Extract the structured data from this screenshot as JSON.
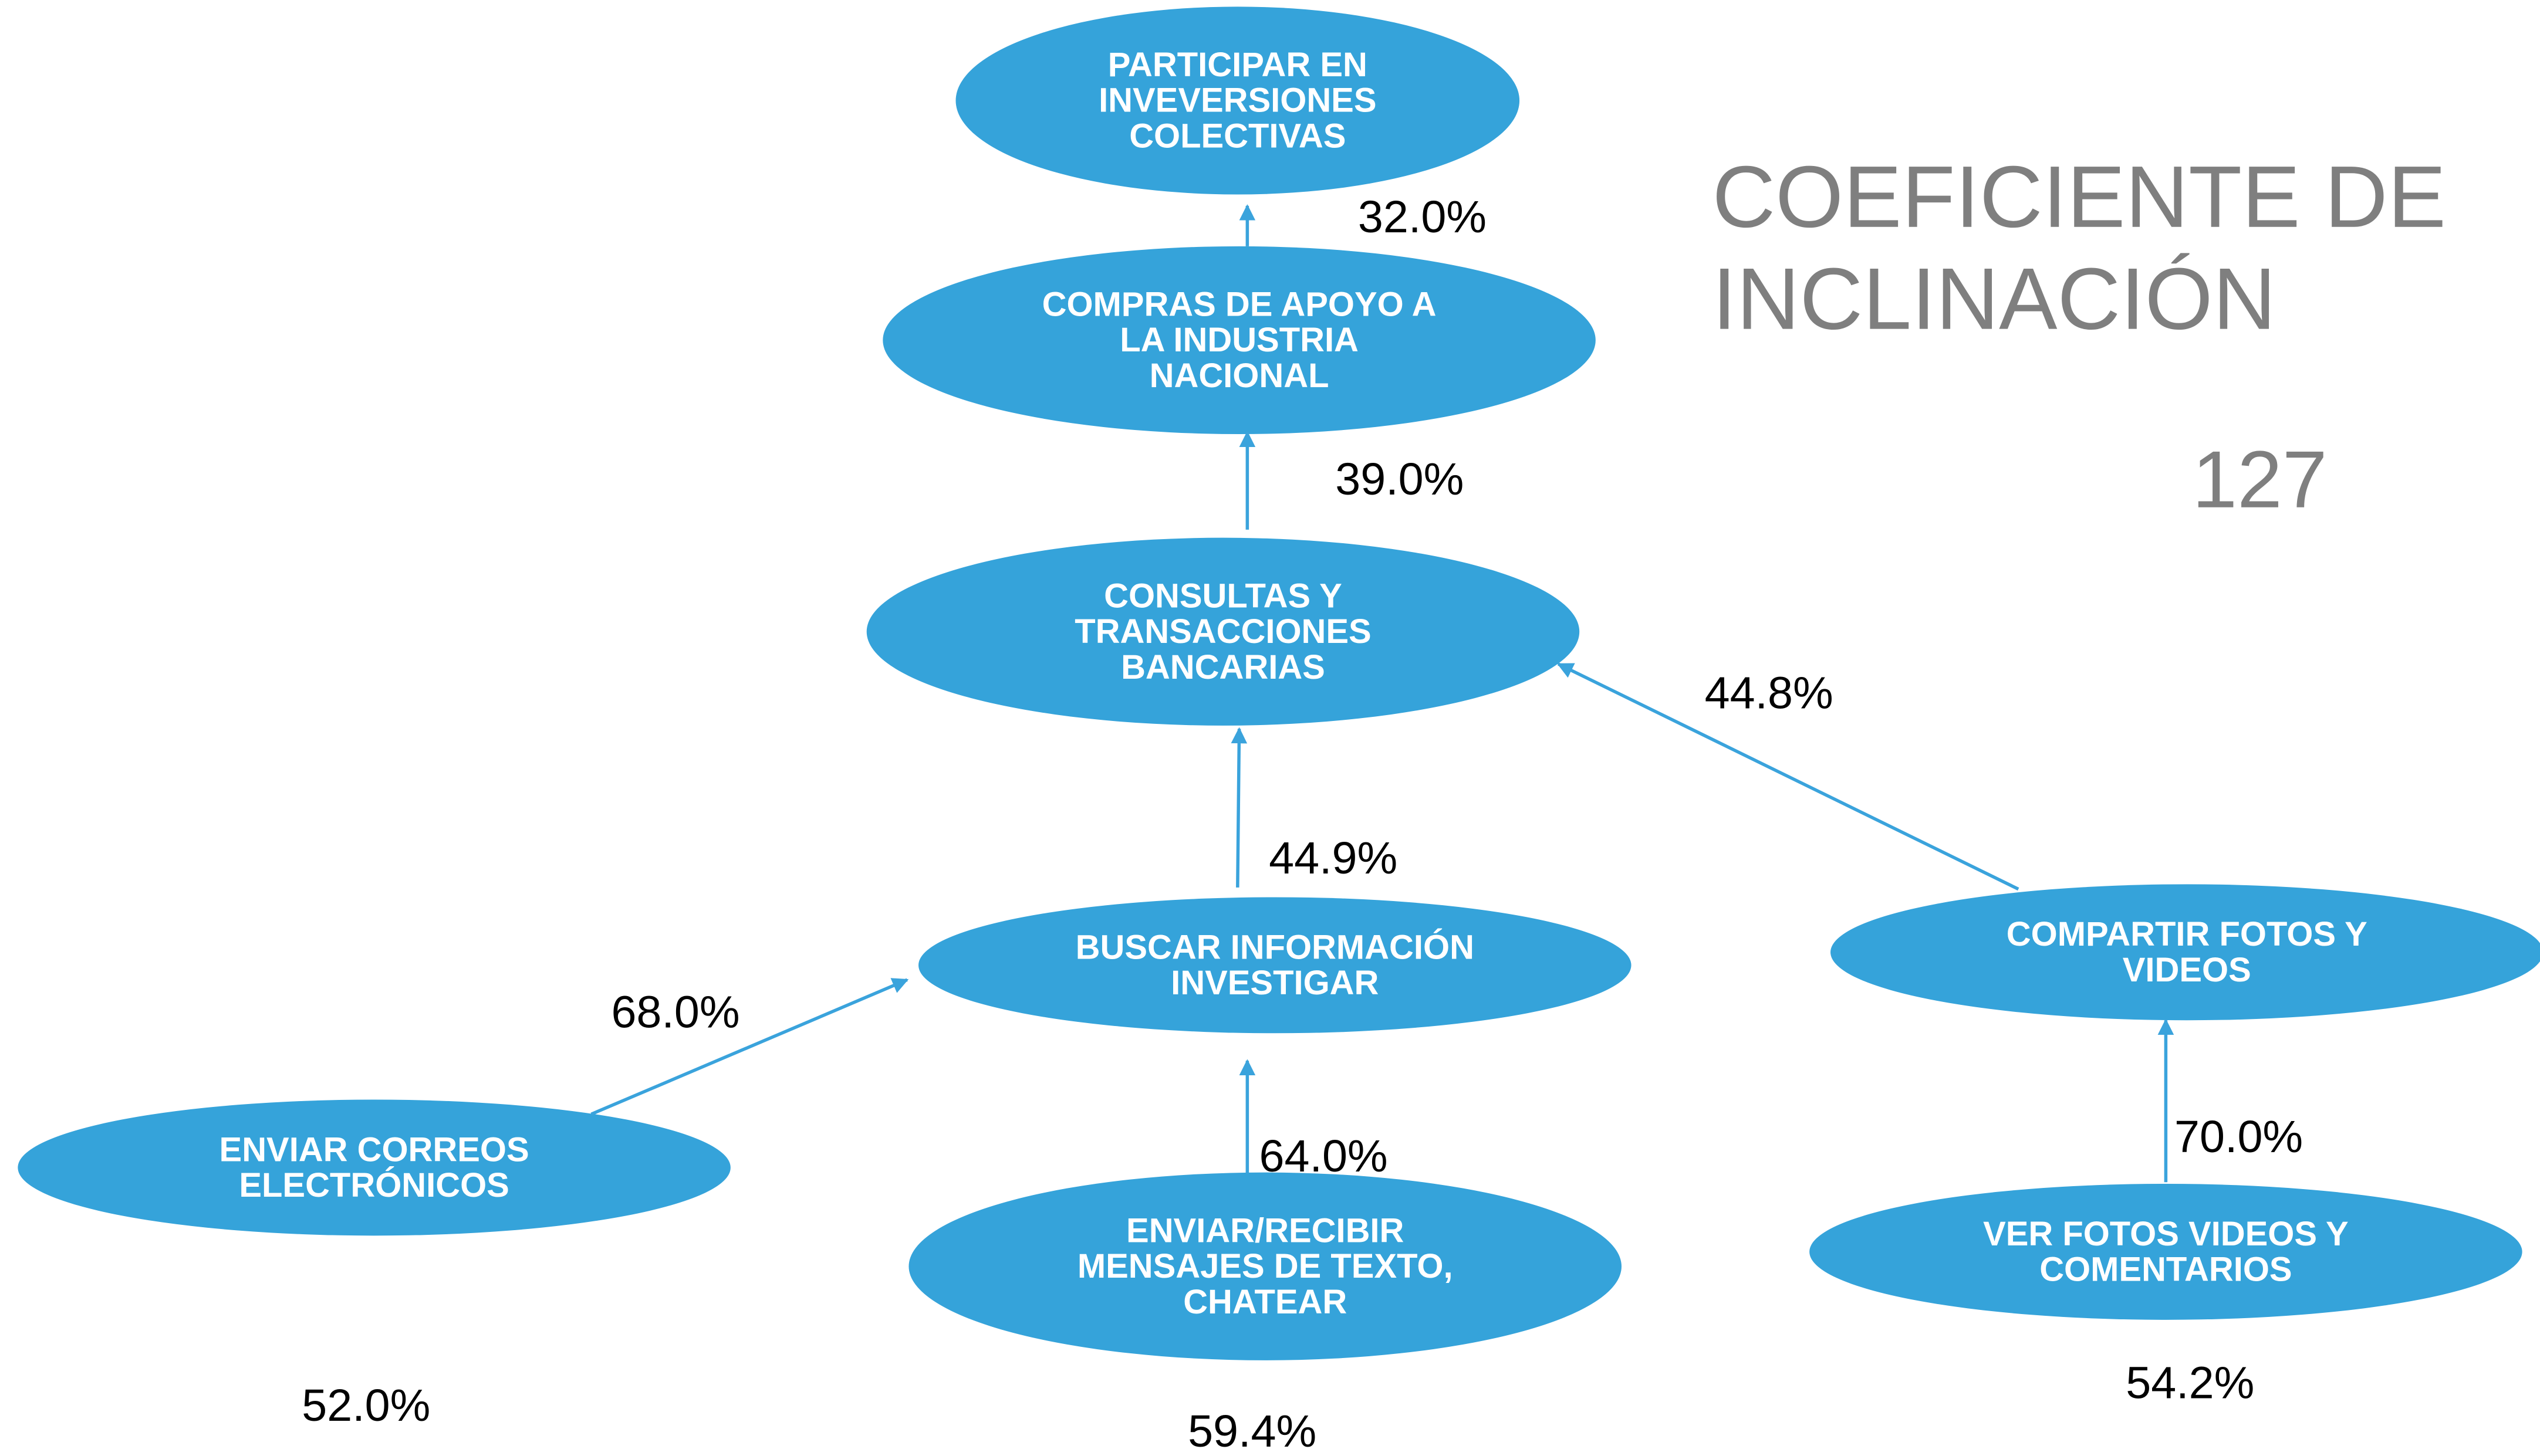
{
  "title": {
    "lines": [
      "COEFICIENTE DE",
      "INCLINACIÓN"
    ]
  },
  "value": "127",
  "nodes": [
    {
      "lines": [
        "PARTICIPAR EN",
        "INVEVERSIONES",
        "COLECTIVAS"
      ]
    },
    {
      "lines": [
        "COMPRAS DE APOYO A",
        "LA INDUSTRIA",
        "NACIONAL"
      ]
    },
    {
      "lines": [
        "CONSULTAS Y",
        "TRANSACCIONES",
        "BANCARIAS"
      ]
    },
    {
      "lines": [
        "BUSCAR INFORMACIÓN",
        "INVESTIGAR"
      ]
    },
    {
      "lines": [
        "COMPARTIR FOTOS Y",
        "VIDEOS"
      ]
    },
    {
      "lines": [
        "ENVIAR CORREOS",
        "ELECTRÓNICOS"
      ]
    },
    {
      "lines": [
        "ENVIAR/RECIBIR",
        "MENSAJES DE TEXTO,",
        "CHATEAR"
      ]
    },
    {
      "lines": [
        "VER FOTOS VIDEOS Y",
        "COMENTARIOS"
      ]
    }
  ],
  "edges": [
    {
      "label": "32.0%"
    },
    {
      "label": "39.0%"
    },
    {
      "label": "44.9%"
    },
    {
      "label": "44.8%"
    },
    {
      "label": "68.0%"
    },
    {
      "label": "64.0%"
    },
    {
      "label": "70.0%"
    }
  ],
  "node_labels": [
    "52.0%",
    "59.4%",
    "54.2%"
  ]
}
